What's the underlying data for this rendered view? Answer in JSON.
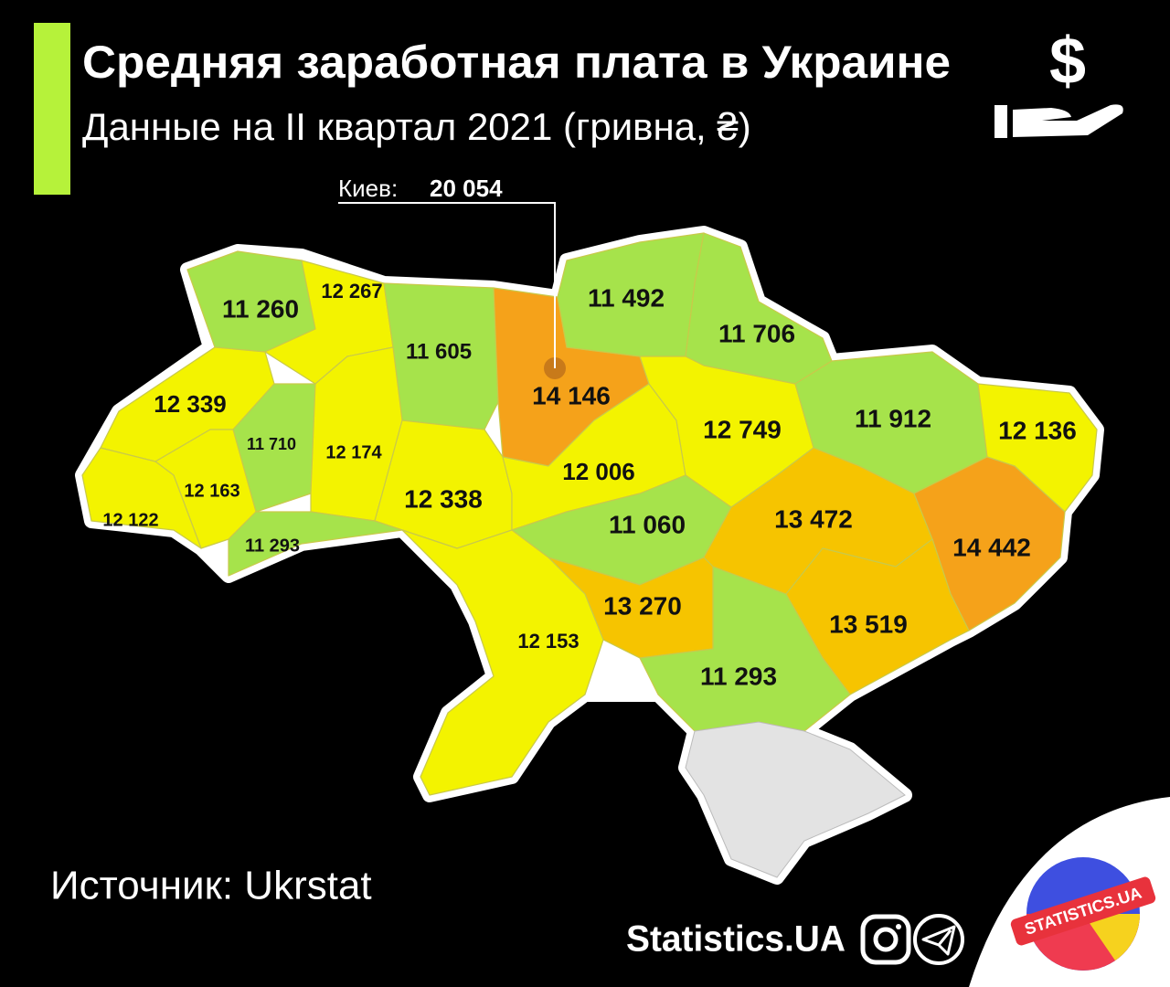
{
  "header": {
    "title": "Средняя заработная плата в Украине",
    "subtitle": "Данные на II квартал 2021 (гривна, ₴)",
    "icon_symbol": "$"
  },
  "capital": {
    "label": "Киев:",
    "value": "20 054"
  },
  "regions": [
    "11 260",
    "12 267",
    "11 605",
    "14 146",
    "11 492",
    "11 706",
    "12 339",
    "11 710",
    "12 174",
    "12 338",
    "12 163",
    "12 122",
    "11 293",
    "12 006",
    "12 749",
    "11 912",
    "12 136",
    "11 060",
    "13 472",
    "14 442",
    "13 519",
    "13 270",
    "12 153",
    "11 293"
  ],
  "source": "Источник: Ukrstat",
  "brand": "Statistics.UA",
  "logo": "STATISTICS.UA"
}
